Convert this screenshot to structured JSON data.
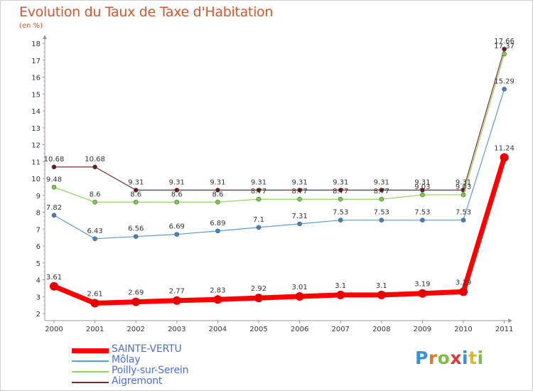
{
  "title": "Evolution du Taux de Taxe d'Habitation",
  "subtitle": "(en %)",
  "logo": {
    "text": "Proxiti",
    "letters": [
      {
        "char": "P",
        "color": "#3b8fd6"
      },
      {
        "char": "r",
        "color": "#e0792b"
      },
      {
        "char": "o",
        "color": "#7fbf3f"
      },
      {
        "char": "x",
        "color": "#d93a3a"
      },
      {
        "char": "i",
        "color": "#3b8fd6"
      },
      {
        "char": "t",
        "color": "#e0b42b"
      },
      {
        "char": "i",
        "color": "#7fbf3f"
      }
    ]
  },
  "chart_data": {
    "type": "line",
    "x": [
      "2000",
      "2001",
      "2002",
      "2003",
      "2004",
      "2005",
      "2006",
      "2007",
      "2008",
      "2009",
      "2010",
      "2011"
    ],
    "ylim": [
      2,
      18
    ],
    "yticks": [
      "2",
      "3",
      "4",
      "5",
      "6",
      "7",
      "8",
      "9",
      "10",
      "11",
      "12",
      "13",
      "14",
      "15",
      "16",
      "17",
      "18"
    ],
    "grid": false,
    "legend_position": "bottom-left",
    "series": [
      {
        "name": "Aigremont",
        "color": "#7a2a2a",
        "marker": "#6b1818",
        "width": 1.2,
        "radius": 3,
        "values": [
          10.68,
          10.68,
          9.31,
          9.31,
          9.31,
          9.31,
          9.31,
          9.31,
          9.31,
          9.31,
          9.31,
          17.66
        ],
        "labels": [
          "10.68",
          "10.68",
          "9.31",
          "9.31",
          "9.31",
          "9.31",
          "9.31",
          "9.31",
          "9.31",
          "9.31",
          "9.31",
          "17.66"
        ]
      },
      {
        "name": "Poilly-sur-Serein",
        "color": "#8cd65a",
        "marker": "#7ccb47",
        "width": 1.2,
        "radius": 3,
        "values": [
          9.48,
          8.6,
          8.6,
          8.6,
          8.6,
          8.77,
          8.77,
          8.77,
          8.77,
          9.03,
          9.03,
          17.37
        ],
        "labels": [
          "9.48",
          "8.6",
          "8.6",
          "8.6",
          "8.6",
          "8.77",
          "8.77",
          "8.77",
          "8.77",
          "9.03",
          "9.03",
          "17.37"
        ]
      },
      {
        "name": "Môlay",
        "color": "#5a9bd6",
        "marker": "#3b82c8",
        "width": 1.2,
        "radius": 3,
        "values": [
          7.82,
          6.43,
          6.56,
          6.69,
          6.89,
          7.1,
          7.31,
          7.53,
          7.53,
          7.53,
          7.53,
          15.29
        ],
        "labels": [
          "7.82",
          "6.43",
          "6.56",
          "6.69",
          "6.89",
          "7.1",
          "7.31",
          "7.53",
          "7.53",
          "7.53",
          "7.53",
          "15.29"
        ]
      },
      {
        "name": "SAINTE-VERTU",
        "color": "#ff0000",
        "marker": "#e60000",
        "width": 7,
        "radius": 6,
        "values": [
          3.61,
          2.61,
          2.69,
          2.77,
          2.83,
          2.92,
          3.01,
          3.1,
          3.1,
          3.19,
          3.29,
          11.24
        ],
        "labels": [
          "3.61",
          "2.61",
          "2.69",
          "2.77",
          "2.83",
          "2.92",
          "3.01",
          "3.1",
          "3.1",
          "3.19",
          "3.29",
          "11.24"
        ]
      }
    ]
  },
  "legend": [
    {
      "name": "SAINTE-VERTU",
      "color": "#ff0000",
      "thickness": 7
    },
    {
      "name": "Môlay",
      "color": "#5a9bd6",
      "thickness": 2
    },
    {
      "name": "Poilly-sur-Serein",
      "color": "#8cd65a",
      "thickness": 2
    },
    {
      "name": "Aigremont",
      "color": "#7a2a2a",
      "thickness": 2
    }
  ]
}
